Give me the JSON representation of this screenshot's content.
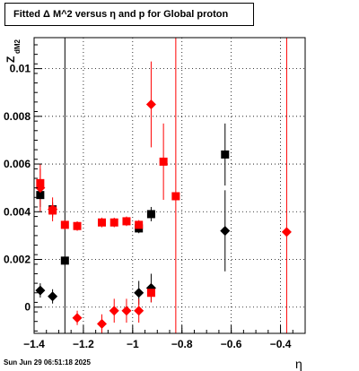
{
  "title": "Fitted Δ M^2 versus η and p for Global proton",
  "footer": "Sun Jun 29 06:51:18 2025",
  "chart_data": {
    "type": "scatter",
    "title": "Fitted Δ M^2 versus η and p for Global proton",
    "xlabel": "η",
    "ylabel_main": "Z",
    "ylabel_sub": "dM2",
    "xlim": [
      -1.4,
      -0.3
    ],
    "ylim": [
      -0.0011,
      0.0113
    ],
    "grid": true,
    "x_ticks": [
      -1.4,
      -1.2,
      -1.0,
      -0.8,
      -0.6,
      -0.4
    ],
    "x_tick_labels": [
      "−1.4",
      "−1.2",
      "−1",
      "−0.8",
      "−0.6",
      "−0.4"
    ],
    "y_ticks": [
      0,
      0.002,
      0.004,
      0.006,
      0.008,
      0.01
    ],
    "y_tick_labels": [
      "0",
      "0.002",
      "0.004",
      "0.006",
      "0.008",
      "0.01"
    ],
    "colors": {
      "black": "#000000",
      "red": "#ff0000"
    },
    "series": [
      {
        "marker": "square",
        "color": "#000000",
        "points": [
          {
            "x": -1.375,
            "y": 0.0047,
            "err": 0.0005
          },
          {
            "x": -1.325,
            "y": 0.0041,
            "err": 0.0003
          },
          {
            "x": -1.275,
            "y": 0.00195,
            "err": 0.0115
          },
          {
            "x": -0.975,
            "y": 0.0033,
            "err": 0.0002
          },
          {
            "x": -0.925,
            "y": 0.0039,
            "err": 0.0003
          },
          {
            "x": -0.625,
            "y": 0.0064,
            "err": 0.0013
          }
        ]
      },
      {
        "marker": "diamond",
        "color": "#000000",
        "points": [
          {
            "x": -1.375,
            "y": 0.0007,
            "err": 0.0003
          },
          {
            "x": -1.325,
            "y": 0.00045,
            "err": 0.0003
          },
          {
            "x": -0.975,
            "y": 0.0006,
            "err": 0.0005
          },
          {
            "x": -0.925,
            "y": 0.0008,
            "err": 0.0006
          },
          {
            "x": -0.625,
            "y": 0.0032,
            "err": 0.0017
          }
        ]
      },
      {
        "marker": "square",
        "color": "#ff0000",
        "points": [
          {
            "x": -1.375,
            "y": 0.0052,
            "err": 0.0006
          },
          {
            "x": -1.325,
            "y": 0.00405,
            "err": 0.0003
          },
          {
            "x": -1.275,
            "y": 0.00345,
            "err": 0.0002
          },
          {
            "x": -1.225,
            "y": 0.0034,
            "err": 0.0002
          },
          {
            "x": -1.125,
            "y": 0.00355,
            "err": 0.0002
          },
          {
            "x": -1.075,
            "y": 0.00355,
            "err": 0.0002
          },
          {
            "x": -1.025,
            "y": 0.0036,
            "err": 0.0002
          },
          {
            "x": -0.975,
            "y": 0.00345,
            "err": 0.0002
          },
          {
            "x": -0.925,
            "y": 0.0006,
            "err": 0.0004
          },
          {
            "x": -0.875,
            "y": 0.0061,
            "err": 0.0016
          },
          {
            "x": -0.825,
            "y": 0.00465,
            "err": 0.0114
          }
        ]
      },
      {
        "marker": "diamond",
        "color": "#ff0000",
        "points": [
          {
            "x": -1.375,
            "y": 0.005,
            "err": 0.001
          },
          {
            "x": -1.325,
            "y": 0.0041,
            "err": 0.0005
          },
          {
            "x": -1.225,
            "y": -0.00045,
            "err": 0.0003
          },
          {
            "x": -1.125,
            "y": -0.0007,
            "err": 0.0004
          },
          {
            "x": -1.075,
            "y": -0.00015,
            "err": 0.0005
          },
          {
            "x": -1.025,
            "y": -0.00015,
            "err": 0.0005
          },
          {
            "x": -0.975,
            "y": -0.00015,
            "err": 0.0005
          },
          {
            "x": -0.925,
            "y": 0.0085,
            "err": 0.0018
          },
          {
            "x": -0.375,
            "y": 0.00315,
            "err": 0.0114
          }
        ]
      }
    ]
  }
}
